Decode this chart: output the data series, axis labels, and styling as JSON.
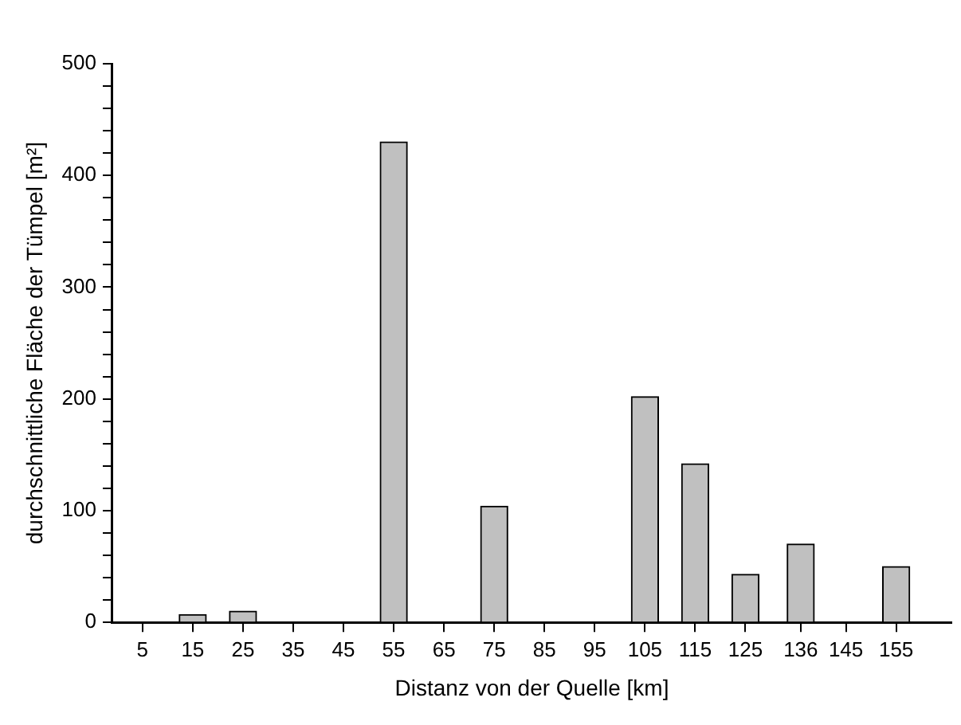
{
  "chart_data": {
    "type": "bar",
    "xlabel": "Distanz von der Quelle [km]",
    "ylabel": "durchschnittliche Fläche der Tümpel [m²]",
    "x": [
      5,
      15,
      25,
      35,
      45,
      55,
      65,
      75,
      85,
      95,
      105,
      115,
      125,
      136,
      145,
      155
    ],
    "values": [
      0,
      7,
      10,
      0,
      0,
      430,
      0,
      104,
      0,
      0,
      202,
      142,
      43,
      70,
      0,
      50
    ],
    "color": "#c0c0c0",
    "xlim": [
      -1,
      166
    ],
    "xticks": [
      5,
      15,
      25,
      35,
      45,
      55,
      65,
      75,
      85,
      95,
      105,
      115,
      125,
      136,
      145,
      155
    ],
    "ylim": [
      0,
      500
    ],
    "yticks": [
      0,
      {
        "value": 20,
        "label": null
      },
      {
        "value": 40,
        "label": null
      },
      {
        "value": 60,
        "label": null
      },
      {
        "value": 80,
        "label": null
      },
      100,
      {
        "value": 120,
        "label": null
      },
      {
        "value": 140,
        "label": null
      },
      {
        "value": 160,
        "label": null
      },
      {
        "value": 180,
        "label": null
      },
      200,
      {
        "value": 220,
        "label": null
      },
      {
        "value": 240,
        "label": null
      },
      {
        "value": 260,
        "label": null
      },
      {
        "value": 280,
        "label": null
      },
      300,
      {
        "value": 320,
        "label": null
      },
      {
        "value": 340,
        "label": null
      },
      {
        "value": 360,
        "label": null
      },
      {
        "value": 380,
        "label": null
      },
      400,
      {
        "value": 420,
        "label": null
      },
      {
        "value": 440,
        "label": null
      },
      {
        "value": 460,
        "label": null
      },
      {
        "value": 480,
        "label": null
      },
      500
    ],
    "grid": false,
    "legend": false
  }
}
